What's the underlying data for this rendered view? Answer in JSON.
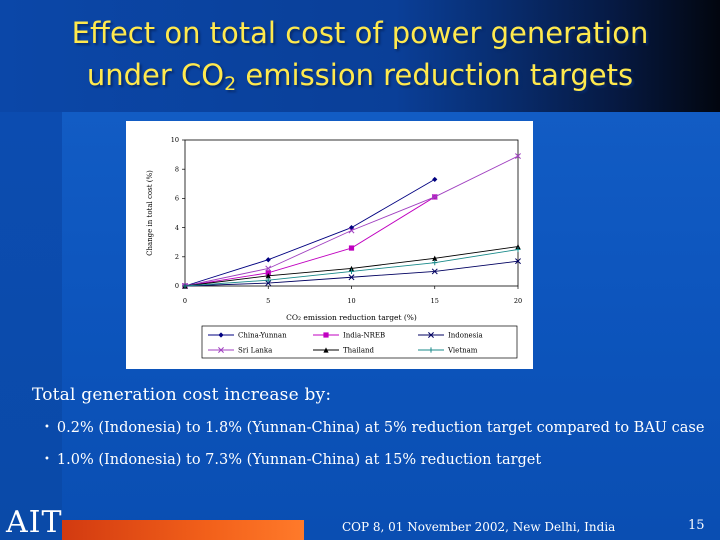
{
  "slide": {
    "title_line1": "Effect on total cost of power generation",
    "title_line2_pre": "under CO",
    "title_line2_sub": "2",
    "title_line2_post": " emission reduction targets",
    "body_heading": "Total generation cost increase by:",
    "bullets": [
      "0.2% (Indonesia) to 1.8% (Yunnan-China) at 5% reduction target compared to  BAU case",
      "1.0% (Indonesia) to 7.3% (Yunnan-China) at 15% reduction target"
    ],
    "bullet_symbol": "•",
    "logo_text": "AIT",
    "footer_text": "COP 8, 01 November 2002, New Delhi, India",
    "page_number": "15"
  },
  "colors": {
    "title": "#ffe94d",
    "background": "#1560c8",
    "footer_bar": "#f2601a"
  },
  "chart_data": {
    "type": "line",
    "title": "",
    "xlabel": "CO₂ emission reduction target (%)",
    "ylabel": "Change in total cost (%)",
    "x": [
      0,
      5,
      10,
      15,
      20
    ],
    "xticks": [
      "0",
      "5",
      "10",
      "15",
      "20"
    ],
    "yticks": [
      "0",
      "2",
      "4",
      "6",
      "8",
      "10"
    ],
    "xlim": [
      0,
      20
    ],
    "ylim": [
      0,
      10
    ],
    "grid": false,
    "legend_position": "bottom",
    "series": [
      {
        "name": "China-Yunnan",
        "color": "#000080",
        "marker": "diamond",
        "x": [
          0,
          5,
          10,
          15
        ],
        "values": [
          0,
          1.8,
          4.0,
          7.3
        ]
      },
      {
        "name": "India-NREB",
        "color": "#c000c0",
        "marker": "square",
        "x": [
          0,
          5,
          10,
          15
        ],
        "values": [
          0,
          0.9,
          2.6,
          6.1
        ]
      },
      {
        "name": "Indonesia",
        "color": "#000060",
        "marker": "x",
        "x": [
          0,
          5,
          10,
          15,
          20
        ],
        "values": [
          0,
          0.2,
          0.6,
          1.0,
          1.7
        ]
      },
      {
        "name": "Sri Lanka",
        "color": "#a040c0",
        "marker": "x",
        "x": [
          0,
          5,
          10,
          15,
          20
        ],
        "values": [
          0,
          1.2,
          3.8,
          6.1,
          8.9
        ]
      },
      {
        "name": "Thailand",
        "color": "#000000",
        "marker": "triangle",
        "x": [
          0,
          5,
          10,
          15,
          20
        ],
        "values": [
          0,
          0.7,
          1.2,
          1.9,
          2.7
        ]
      },
      {
        "name": "Vietnam",
        "color": "#1a8a8a",
        "marker": "plus",
        "x": [
          0,
          5,
          10,
          15,
          20
        ],
        "values": [
          0,
          0.4,
          1.0,
          1.6,
          2.5
        ]
      }
    ]
  }
}
